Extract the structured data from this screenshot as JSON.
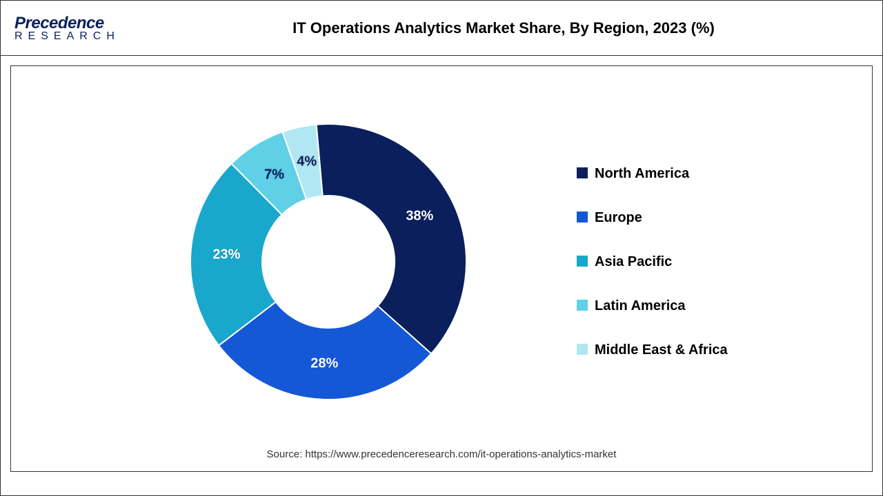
{
  "logo": {
    "line1": "Precedence",
    "line2": "RESEARCH"
  },
  "title": "IT Operations Analytics Market Share, By Region, 2023 (%)",
  "source": "Source: https://www.precedenceresearch.com/it-operations-analytics-market",
  "chart": {
    "type": "donut",
    "background_color": "#ffffff",
    "inner_radius_ratio": 0.48,
    "outer_radius": 200,
    "start_angle_deg": -5,
    "label_fontsize": 20,
    "label_fontweight": "bold",
    "label_color_light": "#ffffff",
    "label_color_dark": "#0a1f5c",
    "slices": [
      {
        "label": "North America",
        "value": 38,
        "display": "38%",
        "color": "#0a1f5c",
        "label_color": "light"
      },
      {
        "label": "Europe",
        "value": 28,
        "display": "28%",
        "color": "#1558d6",
        "label_color": "light"
      },
      {
        "label": "Asia Pacific",
        "value": 23,
        "display": "23%",
        "color": "#1aa7cc",
        "label_color": "light"
      },
      {
        "label": "Latin America",
        "value": 7,
        "display": "7%",
        "color": "#5fd0e6",
        "label_color": "dark"
      },
      {
        "label": "Middle East & Africa",
        "value": 4,
        "display": "4%",
        "color": "#b0e7f2",
        "label_color": "dark"
      }
    ]
  },
  "legend": {
    "swatch_size": 16,
    "fontsize": 20,
    "fontweight": "bold",
    "color": "#000000",
    "gap": 38
  }
}
